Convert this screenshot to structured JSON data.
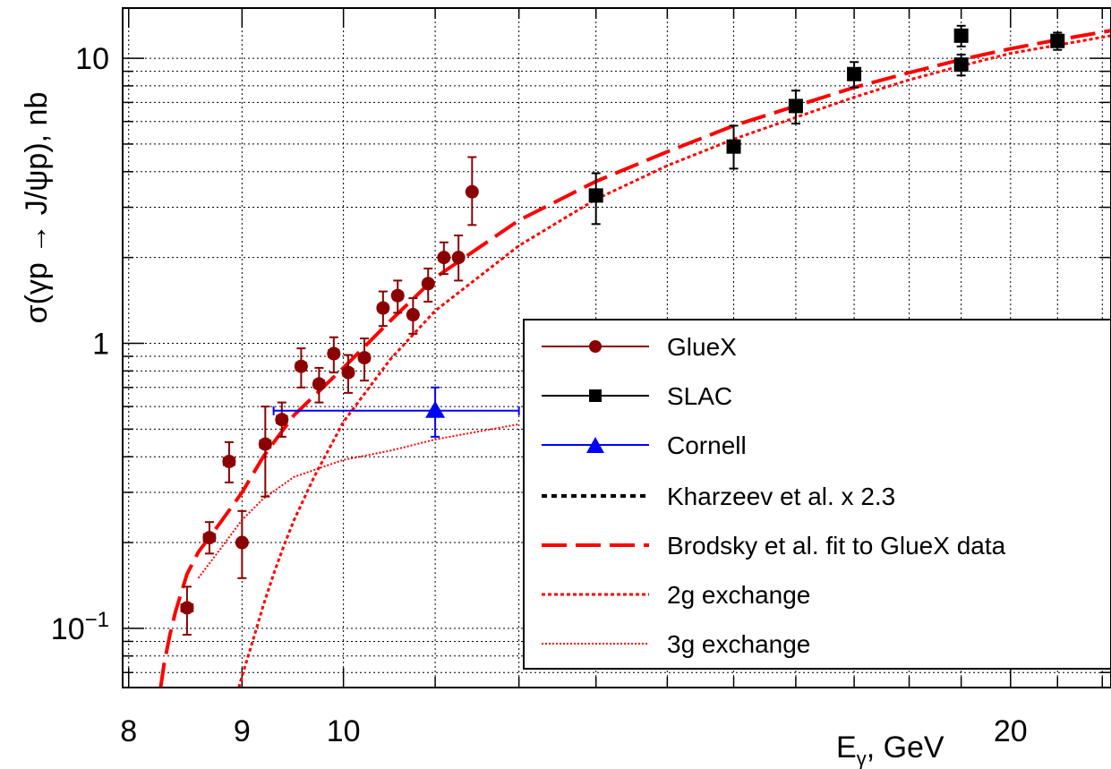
{
  "chart_data": {
    "type": "scatter",
    "title": "",
    "xlabel_main": "E",
    "xlabel_sub": "γ",
    "xlabel_unit": ", GeV",
    "ylabel": "σ(γp → J/ψp), nb",
    "xscale": "log",
    "yscale": "log",
    "xlim": [
      7.95,
      22.2
    ],
    "ylim": [
      0.062,
      15
    ],
    "grid": true,
    "legend_position": "bottom-right",
    "x_tick_labels": [
      {
        "value": 8,
        "label": "8"
      },
      {
        "value": 9,
        "label": "9"
      },
      {
        "value": 10,
        "label": "10"
      },
      {
        "value": 20,
        "label": "20"
      }
    ],
    "y_tick_labels": [
      {
        "value": 10,
        "base": "10",
        "exp": ""
      },
      {
        "value": 1,
        "base": "1",
        "exp": ""
      },
      {
        "value": 0.1,
        "base": "10",
        "exp": "−1"
      }
    ],
    "series": [
      {
        "name": "GlueX",
        "color": "#8b0000",
        "marker": "circle",
        "points": [
          {
            "x": 8.5,
            "y": 0.118,
            "xerr": 0.05,
            "ylo": 0.095,
            "yhi": 0.14
          },
          {
            "x": 8.7,
            "y": 0.208,
            "xerr": 0.05,
            "ylo": 0.183,
            "yhi": 0.236
          },
          {
            "x": 8.88,
            "y": 0.385,
            "xerr": 0.05,
            "ylo": 0.325,
            "yhi": 0.45
          },
          {
            "x": 9.0,
            "y": 0.2,
            "xerr": 0.0,
            "ylo": 0.15,
            "yhi": 0.258
          },
          {
            "x": 9.22,
            "y": 0.443,
            "xerr": 0.05,
            "ylo": 0.29,
            "yhi": 0.6
          },
          {
            "x": 9.38,
            "y": 0.54,
            "xerr": 0.05,
            "ylo": 0.47,
            "yhi": 0.62
          },
          {
            "x": 9.57,
            "y": 0.83,
            "xerr": 0.05,
            "ylo": 0.7,
            "yhi": 0.96
          },
          {
            "x": 9.75,
            "y": 0.72,
            "xerr": 0.05,
            "ylo": 0.62,
            "yhi": 0.82
          },
          {
            "x": 9.9,
            "y": 0.92,
            "xerr": 0.05,
            "ylo": 0.79,
            "yhi": 1.05
          },
          {
            "x": 10.05,
            "y": 0.79,
            "xerr": 0.05,
            "ylo": 0.67,
            "yhi": 0.91
          },
          {
            "x": 10.22,
            "y": 0.89,
            "xerr": 0.05,
            "ylo": 0.74,
            "yhi": 1.04
          },
          {
            "x": 10.42,
            "y": 1.33,
            "xerr": 0.05,
            "ylo": 1.15,
            "yhi": 1.52
          },
          {
            "x": 10.58,
            "y": 1.47,
            "xerr": 0.05,
            "ylo": 1.28,
            "yhi": 1.66
          },
          {
            "x": 10.75,
            "y": 1.26,
            "xerr": 0.05,
            "ylo": 1.08,
            "yhi": 1.44
          },
          {
            "x": 10.92,
            "y": 1.62,
            "xerr": 0.05,
            "ylo": 1.4,
            "yhi": 1.83
          },
          {
            "x": 11.1,
            "y": 2.0,
            "xerr": 0.05,
            "ylo": 1.75,
            "yhi": 2.26
          },
          {
            "x": 11.27,
            "y": 2.0,
            "xerr": 0.05,
            "ylo": 1.66,
            "yhi": 2.39
          },
          {
            "x": 11.43,
            "y": 3.4,
            "xerr": 0.05,
            "ylo": 2.6,
            "yhi": 4.5
          }
        ]
      },
      {
        "name": "SLAC",
        "color": "#000000",
        "marker": "square",
        "points": [
          {
            "x": 13.0,
            "y": 3.3,
            "xerr": 0,
            "ylo": 2.62,
            "yhi": 3.95
          },
          {
            "x": 15.0,
            "y": 4.9,
            "xerr": 0,
            "ylo": 4.1,
            "yhi": 5.8
          },
          {
            "x": 16.0,
            "y": 6.8,
            "xerr": 0,
            "ylo": 5.9,
            "yhi": 7.7
          },
          {
            "x": 17.0,
            "y": 8.8,
            "xerr": 0,
            "ylo": 7.9,
            "yhi": 9.7
          },
          {
            "x": 19.0,
            "y": 9.5,
            "xerr": 0,
            "ylo": 8.7,
            "yhi": 10.3
          },
          {
            "x": 19.0,
            "y": 12.0,
            "xerr": 0,
            "ylo": 11.0,
            "yhi": 13.0
          },
          {
            "x": 21.0,
            "y": 11.5,
            "xerr": 0,
            "ylo": 10.7,
            "yhi": 12.3
          }
        ]
      },
      {
        "name": "Cornell",
        "color": "#0000ff",
        "marker": "triangle",
        "points": [
          {
            "x": 11.0,
            "y": 0.58,
            "xlo": 9.3,
            "xhi": 12.0,
            "ylo": 0.47,
            "yhi": 0.7
          }
        ]
      }
    ],
    "curves": [
      {
        "name": "Kharzeev et al. x 2.3",
        "color": "#000000",
        "style": "dashed",
        "points": []
      },
      {
        "name": "Brodsky et al. fit to GlueX data",
        "color": "#ff0000",
        "style": "long-dashed",
        "points": [
          {
            "x": 8.27,
            "y": 0.062
          },
          {
            "x": 8.3,
            "y": 0.075
          },
          {
            "x": 8.35,
            "y": 0.095
          },
          {
            "x": 8.4,
            "y": 0.115
          },
          {
            "x": 8.5,
            "y": 0.155
          },
          {
            "x": 8.6,
            "y": 0.185
          },
          {
            "x": 8.8,
            "y": 0.235
          },
          {
            "x": 9.0,
            "y": 0.3
          },
          {
            "x": 9.2,
            "y": 0.4
          },
          {
            "x": 9.5,
            "y": 0.56
          },
          {
            "x": 10.0,
            "y": 0.82
          },
          {
            "x": 10.5,
            "y": 1.2
          },
          {
            "x": 11.0,
            "y": 1.7
          },
          {
            "x": 12.0,
            "y": 2.7
          },
          {
            "x": 13.0,
            "y": 3.7
          },
          {
            "x": 14.0,
            "y": 4.7
          },
          {
            "x": 15.0,
            "y": 5.8
          },
          {
            "x": 16.0,
            "y": 6.8
          },
          {
            "x": 17.0,
            "y": 7.9
          },
          {
            "x": 18.0,
            "y": 8.9
          },
          {
            "x": 19.0,
            "y": 9.9
          },
          {
            "x": 20.0,
            "y": 10.8
          },
          {
            "x": 21.0,
            "y": 11.6
          },
          {
            "x": 22.2,
            "y": 12.5
          }
        ]
      },
      {
        "name": "2g exchange",
        "color": "#ff0000",
        "style": "dotted",
        "points": [
          {
            "x": 8.97,
            "y": 0.062
          },
          {
            "x": 9.0,
            "y": 0.068
          },
          {
            "x": 9.1,
            "y": 0.09
          },
          {
            "x": 9.2,
            "y": 0.12
          },
          {
            "x": 9.3,
            "y": 0.155
          },
          {
            "x": 9.4,
            "y": 0.195
          },
          {
            "x": 9.5,
            "y": 0.24
          },
          {
            "x": 9.7,
            "y": 0.34
          },
          {
            "x": 10.0,
            "y": 0.53
          },
          {
            "x": 10.5,
            "y": 0.88
          },
          {
            "x": 11.0,
            "y": 1.3
          },
          {
            "x": 12.0,
            "y": 2.2
          },
          {
            "x": 13.0,
            "y": 3.2
          },
          {
            "x": 14.0,
            "y": 4.2
          },
          {
            "x": 15.0,
            "y": 5.2
          },
          {
            "x": 16.0,
            "y": 6.2
          },
          {
            "x": 17.0,
            "y": 7.3
          },
          {
            "x": 18.0,
            "y": 8.4
          },
          {
            "x": 19.0,
            "y": 9.4
          },
          {
            "x": 20.0,
            "y": 10.4
          },
          {
            "x": 22.2,
            "y": 12.0
          }
        ]
      },
      {
        "name": "3g exchange",
        "color": "#ff0000",
        "style": "fine-dotted",
        "points": [
          {
            "x": 8.6,
            "y": 0.15
          },
          {
            "x": 8.8,
            "y": 0.19
          },
          {
            "x": 9.0,
            "y": 0.24
          },
          {
            "x": 9.2,
            "y": 0.285
          },
          {
            "x": 9.5,
            "y": 0.34
          },
          {
            "x": 10.0,
            "y": 0.39
          },
          {
            "x": 10.5,
            "y": 0.42
          },
          {
            "x": 11.0,
            "y": 0.46
          },
          {
            "x": 11.5,
            "y": 0.49
          },
          {
            "x": 12.0,
            "y": 0.52
          }
        ]
      }
    ]
  }
}
